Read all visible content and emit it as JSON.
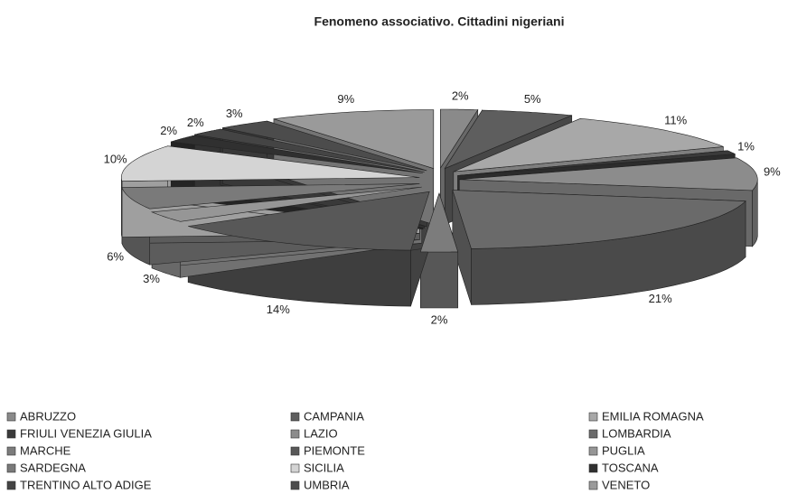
{
  "chart_data": {
    "type": "pie",
    "title": "Fenomeno associativo. Cittadini nigeriani",
    "categories": [
      "ABRUZZO",
      "CAMPANIA",
      "EMILIA ROMAGNA",
      "FRIULI VENEZIA GIULIA",
      "LAZIO",
      "LOMBARDIA",
      "MARCHE",
      "PIEMONTE",
      "PUGLIA",
      "SARDEGNA",
      "SICILIA",
      "TOSCANA",
      "TRENTINO ALTO ADIGE",
      "UMBRIA",
      "VENETO"
    ],
    "values": [
      2,
      5,
      11,
      1,
      9,
      21,
      2,
      14,
      3,
      6,
      10,
      2,
      2,
      3,
      9
    ],
    "value_labels": [
      "2%",
      "5%",
      "11%",
      "1%",
      "9%",
      "21%",
      "2%",
      "14%",
      "3%",
      "6%",
      "10%",
      "2%",
      "2%",
      "3%",
      "9%"
    ],
    "colors": [
      "#8a8a8a",
      "#5e5e5e",
      "#a8a8a8",
      "#3a3a3a",
      "#8c8c8c",
      "#6a6a6a",
      "#7c7c7c",
      "#585858",
      "#969696",
      "#7a7a7a",
      "#d4d4d4",
      "#303030",
      "#444444",
      "#4c4c4c",
      "#9a9a9a"
    ],
    "legend": "bottom"
  }
}
